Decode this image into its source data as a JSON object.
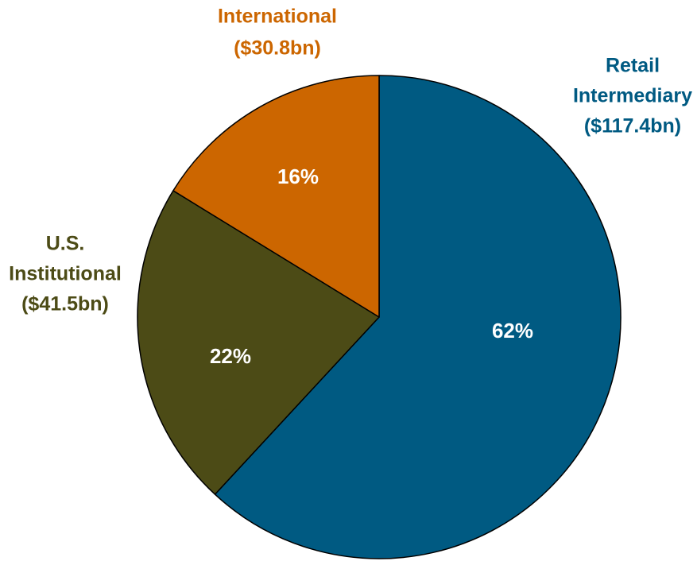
{
  "chart_data": {
    "type": "pie",
    "title": "",
    "slices": [
      {
        "name": "Retail Intermediary",
        "label_lines": [
          "Retail",
          "Intermediary",
          "($117.4bn)"
        ],
        "value": 117.4,
        "percent_label": "62%",
        "color": "#005a82"
      },
      {
        "name": "U.S. Institutional",
        "label_lines": [
          "U.S.",
          "Institutional",
          "($41.5bn)"
        ],
        "value": 41.5,
        "percent_label": "22%",
        "color": "#4c4b16"
      },
      {
        "name": "International",
        "label_lines": [
          "International",
          "($30.8bn)"
        ],
        "value": 30.8,
        "percent_label": "16%",
        "color": "#cc6600"
      }
    ],
    "start_angle_deg": 0,
    "direction": "clockwise",
    "legend": "none"
  }
}
